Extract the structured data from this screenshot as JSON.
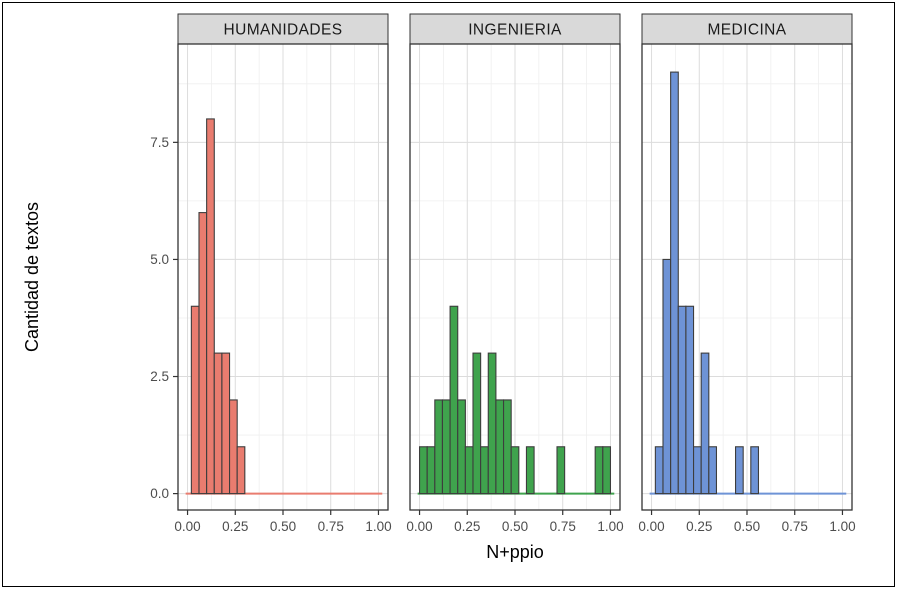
{
  "figure": {
    "background": "#ffffff",
    "frame_color": "#000000"
  },
  "chart_data": {
    "type": "bar",
    "subtype": "faceted-histogram",
    "title": "",
    "xlabel": "N+ppio",
    "ylabel": "Cantidad de textos",
    "x_tick_labels": [
      "0.00",
      "0.25",
      "0.50",
      "0.75",
      "1.00"
    ],
    "x_tick_values": [
      0,
      0.25,
      0.5,
      0.75,
      1.0
    ],
    "x_minor_values": [
      0.125,
      0.375,
      0.625,
      0.875
    ],
    "y_tick_labels": [
      "0.0",
      "2.5",
      "5.0",
      "7.5"
    ],
    "y_tick_values": [
      0,
      2.5,
      5.0,
      7.5
    ],
    "y_minor_values": [
      1.25,
      3.75,
      6.25,
      8.75
    ],
    "xlim": [
      -0.05,
      1.05
    ],
    "ylim": [
      -0.35,
      9.6
    ],
    "binwidth": 0.04,
    "grid": true,
    "legend_position": "none",
    "facets": [
      {
        "label": "HUMANIDADES",
        "fill": "#E97C6F",
        "bars": [
          {
            "x": 0.02,
            "count": 4
          },
          {
            "x": 0.06,
            "count": 6
          },
          {
            "x": 0.1,
            "count": 8
          },
          {
            "x": 0.14,
            "count": 3
          },
          {
            "x": 0.18,
            "count": 3
          },
          {
            "x": 0.22,
            "count": 2
          },
          {
            "x": 0.26,
            "count": 1
          }
        ]
      },
      {
        "label": "INGENIERIA",
        "fill": "#3FA34D",
        "bars": [
          {
            "x": 0.0,
            "count": 1
          },
          {
            "x": 0.04,
            "count": 1
          },
          {
            "x": 0.08,
            "count": 2
          },
          {
            "x": 0.12,
            "count": 2
          },
          {
            "x": 0.16,
            "count": 4
          },
          {
            "x": 0.2,
            "count": 2
          },
          {
            "x": 0.24,
            "count": 1
          },
          {
            "x": 0.28,
            "count": 3
          },
          {
            "x": 0.32,
            "count": 1
          },
          {
            "x": 0.36,
            "count": 3
          },
          {
            "x": 0.4,
            "count": 2
          },
          {
            "x": 0.44,
            "count": 2
          },
          {
            "x": 0.48,
            "count": 1
          },
          {
            "x": 0.56,
            "count": 1
          },
          {
            "x": 0.72,
            "count": 1
          },
          {
            "x": 0.92,
            "count": 1
          },
          {
            "x": 0.96,
            "count": 1
          }
        ]
      },
      {
        "label": "MEDICINA",
        "fill": "#6E93D6",
        "bars": [
          {
            "x": 0.02,
            "count": 1
          },
          {
            "x": 0.06,
            "count": 5
          },
          {
            "x": 0.1,
            "count": 9
          },
          {
            "x": 0.14,
            "count": 4
          },
          {
            "x": 0.18,
            "count": 4
          },
          {
            "x": 0.22,
            "count": 1
          },
          {
            "x": 0.26,
            "count": 3
          },
          {
            "x": 0.3,
            "count": 1
          },
          {
            "x": 0.44,
            "count": 1
          },
          {
            "x": 0.52,
            "count": 1
          }
        ]
      }
    ],
    "colors": {
      "bar_stroke": "#3d3d3d",
      "grid_major": "#dcdcdc",
      "grid_minor": "#efefef",
      "panel_background": "#ffffff",
      "panel_border": "#333333",
      "strip_background": "#d9d9d9",
      "strip_border": "#333333",
      "strip_text": "#1a1a1a",
      "tick_label": "#4d4d4d",
      "axis_title": "#000000",
      "tick_mark": "#333333"
    }
  }
}
